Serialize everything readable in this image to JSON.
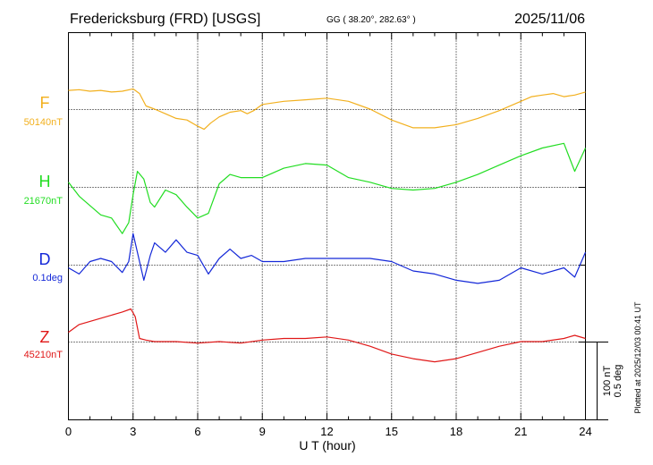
{
  "header": {
    "station": "Fredericksburg (FRD)  [USGS]",
    "coords": "GG ( 38.20°, 282.63° )",
    "date": "2025/11/06"
  },
  "footer": {
    "plotted": "Plotted at 2025/12/03 00:41 UT"
  },
  "scale": {
    "nt": "100 nT",
    "deg": "0.5 deg"
  },
  "chart_data": {
    "type": "line",
    "xlabel": "U T (hour)",
    "xlim": [
      0,
      24
    ],
    "xticks": [
      0,
      3,
      6,
      9,
      12,
      15,
      18,
      21,
      24
    ],
    "grid": true,
    "series": [
      {
        "name": "F",
        "baseline_label": "50140nT",
        "color": "#f2b01e",
        "baseline": 50140,
        "unit": "nT",
        "x": [
          0,
          0.5,
          1,
          1.5,
          2,
          2.5,
          3,
          3.3,
          3.6,
          4,
          4.5,
          5,
          5.5,
          6,
          6.3,
          6.6,
          7,
          7.5,
          8,
          8.3,
          8.6,
          9,
          10,
          11,
          12,
          13,
          14,
          15,
          16,
          17,
          18,
          19,
          20,
          21,
          21.5,
          22,
          22.5,
          23,
          23.5,
          24
        ],
        "values": [
          24,
          25,
          23,
          24,
          22,
          23,
          26,
          20,
          4,
          0,
          -6,
          -12,
          -14,
          -22,
          -26,
          -18,
          -10,
          -4,
          -2,
          -6,
          -2,
          6,
          10,
          12,
          14,
          10,
          0,
          -14,
          -24,
          -24,
          -20,
          -12,
          -2,
          10,
          16,
          18,
          20,
          16,
          18,
          22
        ]
      },
      {
        "name": "H",
        "baseline_label": "21670nT",
        "color": "#22dd22",
        "baseline": 21670,
        "unit": "nT",
        "x": [
          0,
          0.5,
          1,
          1.5,
          2,
          2.5,
          2.8,
          3,
          3.2,
          3.5,
          3.8,
          4,
          4.5,
          5,
          5.5,
          6,
          6.5,
          7,
          7.5,
          8,
          8.5,
          9,
          10,
          11,
          12,
          13,
          14,
          15,
          16,
          17,
          18,
          19,
          20,
          21,
          22,
          23,
          23.5,
          24
        ],
        "values": [
          6,
          -12,
          -24,
          -36,
          -40,
          -60,
          -46,
          -10,
          20,
          10,
          -20,
          -26,
          -4,
          -10,
          -26,
          -40,
          -34,
          4,
          16,
          12,
          12,
          12,
          24,
          30,
          28,
          12,
          6,
          -2,
          -4,
          -2,
          6,
          16,
          28,
          40,
          50,
          56,
          20,
          50
        ]
      },
      {
        "name": "D",
        "baseline_label": "0.1deg",
        "color": "#1428d8",
        "baseline": 0.1,
        "unit": "deg",
        "x": [
          0,
          0.5,
          1,
          1.5,
          2,
          2.5,
          2.8,
          3,
          3.2,
          3.5,
          3.8,
          4,
          4.5,
          5,
          5.5,
          6,
          6.5,
          7,
          7.5,
          8,
          8.5,
          9,
          10,
          11,
          12,
          13,
          14,
          15,
          16,
          17,
          18,
          19,
          20,
          21,
          22,
          23,
          23.5,
          24
        ],
        "values": [
          -0.02,
          -0.06,
          0.02,
          0.04,
          0.02,
          -0.05,
          0.02,
          0.2,
          0.08,
          -0.1,
          0.06,
          0.14,
          0.08,
          0.16,
          0.08,
          0.06,
          -0.06,
          0.04,
          0.1,
          0.04,
          0.06,
          0.02,
          0.02,
          0.04,
          0.04,
          0.04,
          0.04,
          0.02,
          -0.04,
          -0.06,
          -0.1,
          -0.12,
          -0.1,
          -0.02,
          -0.06,
          -0.02,
          -0.08,
          0.08
        ]
      },
      {
        "name": "Z",
        "baseline_label": "45210nT",
        "color": "#e01818",
        "baseline": 45210,
        "unit": "nT",
        "x": [
          0,
          0.5,
          1,
          1.5,
          2,
          2.5,
          2.9,
          3.1,
          3.3,
          3.6,
          4,
          5,
          6,
          7,
          8,
          9,
          10,
          11,
          12,
          13,
          14,
          15,
          16,
          17,
          18,
          19,
          20,
          21,
          22,
          23,
          23.5,
          24
        ],
        "values": [
          12,
          22,
          26,
          30,
          34,
          38,
          42,
          32,
          4,
          2,
          0,
          0,
          -2,
          0,
          -2,
          2,
          4,
          4,
          6,
          2,
          -6,
          -16,
          -22,
          -26,
          -22,
          -14,
          -6,
          0,
          0,
          4,
          8,
          4
        ]
      }
    ]
  }
}
